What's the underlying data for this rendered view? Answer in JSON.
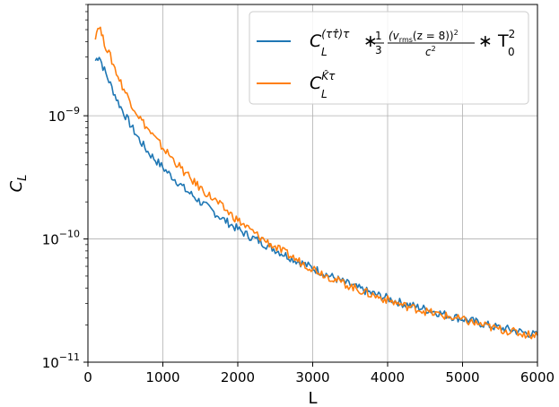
{
  "chart_data": {
    "type": "line",
    "xlabel": "L",
    "ylabel": "C_L",
    "xlim": [
      0,
      6000
    ],
    "ylim": [
      1e-11,
      8e-09
    ],
    "yscale": "log",
    "grid": true,
    "legend_position": "top-right",
    "x_ticks": [
      "0",
      "1000",
      "2000",
      "3000",
      "4000",
      "5000",
      "6000"
    ],
    "y_ticks": [
      {
        "value": 1e-11,
        "base": "10",
        "exp": "−11"
      },
      {
        "value": 1e-10,
        "base": "10",
        "exp": "−10"
      },
      {
        "value": 1e-09,
        "base": "10",
        "exp": "−9"
      }
    ],
    "series": [
      {
        "name": "C_L^{(ττ̂)τ} * (1/3)(v_rms(z=8))²/c² * T₀²",
        "legend": {
          "main": "C",
          "sub": "L",
          "sup": "(ττ̂)τ",
          "mid": "∗",
          "frac_a": "1",
          "frac_b": "3",
          "num": "(v",
          "num_sub": "rms",
          "num_rest": "(z = 8))",
          "num_sup": "2",
          "den": "c",
          "den_sup": "2",
          "end": "∗ T",
          "end_sub": "0",
          "end_sup": "2"
        },
        "color": "#1f77b4",
        "x": [
          100,
          150,
          200,
          300,
          400,
          500,
          600,
          700,
          800,
          900,
          1000,
          1100,
          1200,
          1300,
          1400,
          1500,
          1600,
          1700,
          1800,
          1900,
          2000,
          2100,
          2200,
          2300,
          2400,
          2500,
          2600,
          2700,
          2800,
          2900,
          3000,
          3200,
          3400,
          3600,
          3800,
          4000,
          4200,
          4400,
          4600,
          4800,
          5000,
          5200,
          5400,
          5600,
          5800,
          6000
        ],
        "values": [
          2.8e-09,
          3.1e-09,
          2.5e-09,
          1.8e-09,
          1.3e-09,
          1e-09,
          7.8e-10,
          6.2e-10,
          5.1e-10,
          4.4e-10,
          3.8e-10,
          3.3e-10,
          2.9e-10,
          2.5e-10,
          2.25e-10,
          2e-10,
          1.8e-10,
          1.62e-10,
          1.45e-10,
          1.32e-10,
          1.2e-10,
          1.1e-10,
          1.02e-10,
          9.5e-11,
          8.8e-11,
          8.2e-11,
          7.6e-11,
          7.1e-11,
          6.6e-11,
          6.2e-11,
          5.8e-11,
          5.1e-11,
          4.5e-11,
          4e-11,
          3.6e-11,
          3.3e-11,
          3e-11,
          2.8e-11,
          2.6e-11,
          2.4e-11,
          2.25e-11,
          2.1e-11,
          1.95e-11,
          1.85e-11,
          1.75e-11,
          1.65e-11
        ]
      },
      {
        "name": "C_L^{K̂τ}",
        "legend": {
          "main": "C",
          "sub": "L",
          "sup": "K̂τ"
        },
        "color": "#ff7f0e",
        "x": [
          100,
          150,
          200,
          300,
          400,
          500,
          600,
          700,
          800,
          900,
          1000,
          1100,
          1200,
          1300,
          1400,
          1500,
          1600,
          1700,
          1800,
          1900,
          2000,
          2100,
          2200,
          2300,
          2400,
          2500,
          2600,
          2700,
          2800,
          2900,
          3000,
          3200,
          3400,
          3600,
          3800,
          4000,
          4200,
          4400,
          4600,
          4800,
          5000,
          5200,
          5400,
          5600,
          5800,
          6000
        ],
        "values": [
          4.5e-09,
          5.5e-09,
          4.2e-09,
          3e-09,
          2.1e-09,
          1.55e-09,
          1.2e-09,
          9.5e-10,
          7.8e-10,
          6.5e-10,
          5.5e-10,
          4.7e-10,
          4e-10,
          3.4e-10,
          2.95e-10,
          2.6e-10,
          2.3e-10,
          2.05e-10,
          1.8e-10,
          1.6e-10,
          1.42e-10,
          1.27e-10,
          1.14e-10,
          1.03e-10,
          9.4e-11,
          8.6e-11,
          7.9e-11,
          7.3e-11,
          6.7e-11,
          6.2e-11,
          5.8e-11,
          5e-11,
          4.4e-11,
          3.9e-11,
          3.5e-11,
          3.2e-11,
          2.9e-11,
          2.7e-11,
          2.5e-11,
          2.35e-11,
          2.2e-11,
          2.05e-11,
          1.9e-11,
          1.8e-11,
          1.7e-11,
          1.65e-11
        ]
      }
    ]
  }
}
